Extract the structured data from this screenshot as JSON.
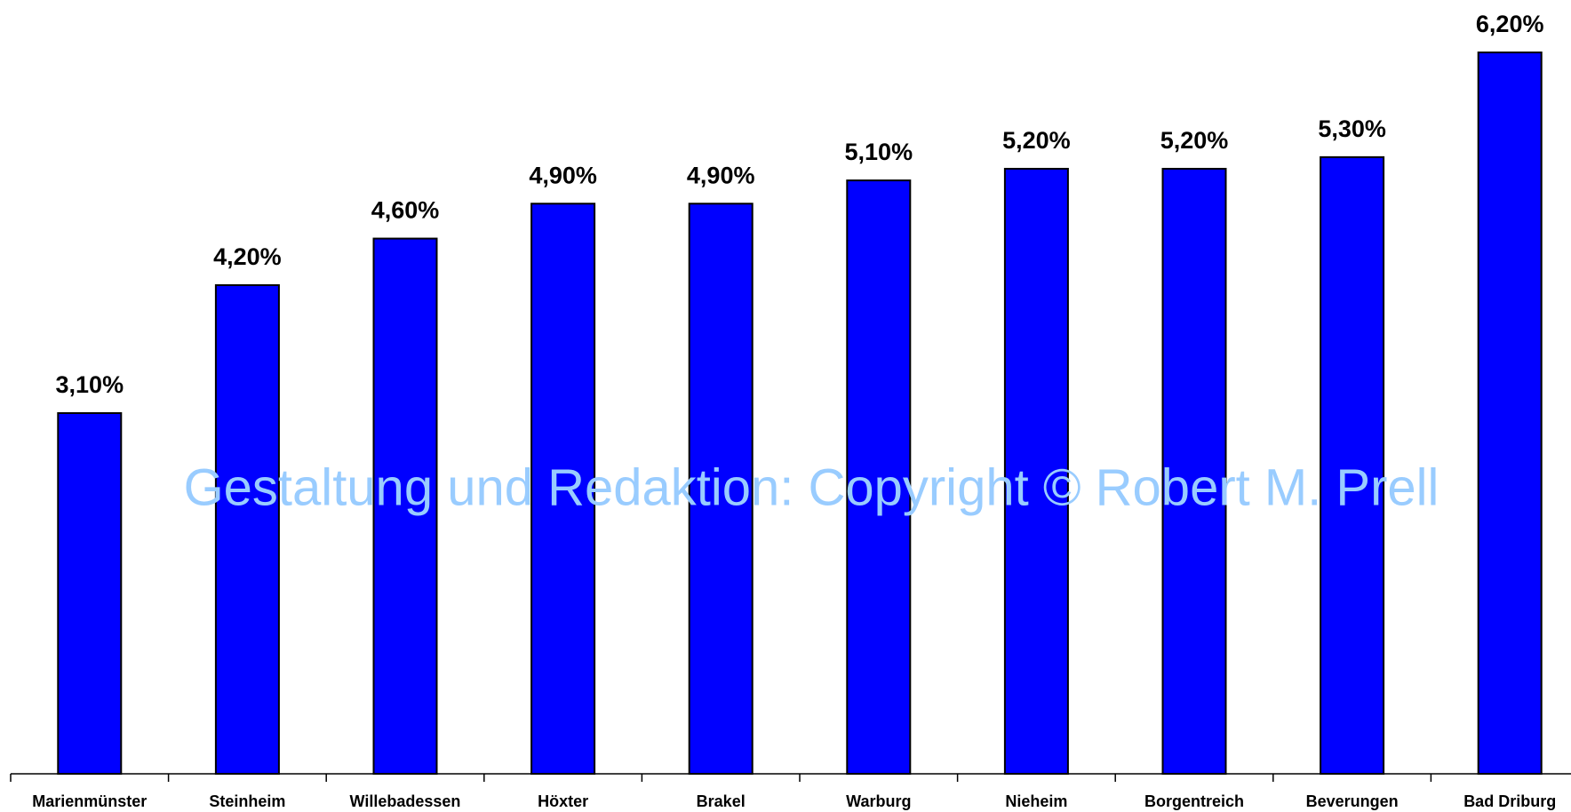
{
  "chart_data": {
    "type": "bar",
    "categories": [
      "Marienmünster",
      "Steinheim",
      "Willebadessen",
      "Höxter",
      "Brakel",
      "Warburg",
      "Nieheim",
      "Borgentreich",
      "Beverungen",
      "Bad Driburg"
    ],
    "values": [
      3.1,
      4.2,
      4.6,
      4.9,
      4.9,
      5.1,
      5.2,
      5.2,
      5.3,
      6.2
    ],
    "value_labels": [
      "3,10%",
      "4,20%",
      "4,60%",
      "4,90%",
      "4,90%",
      "5,10%",
      "5,20%",
      "5,20%",
      "5,30%",
      "6,20%"
    ],
    "color": "#0000ff",
    "annotation": "Gestaltung und Redaktion: Copyright © Robert M. Prell"
  }
}
